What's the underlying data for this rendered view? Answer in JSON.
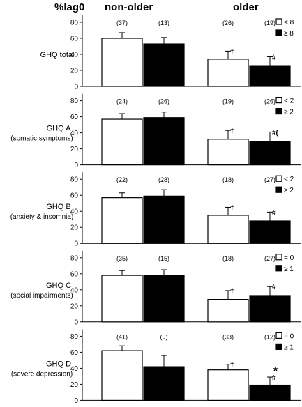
{
  "header": {
    "ylabel": "%lag0",
    "group_nonolder": "non-older",
    "group_older": "older"
  },
  "chart_data": [
    {
      "type": "bar",
      "title": "GHQ total",
      "subtitle": "",
      "categories": [
        "non-older",
        "older"
      ],
      "ylim": [
        0,
        80
      ],
      "yticks": [
        0,
        20,
        40,
        60,
        80
      ],
      "legend_position": "top-right",
      "series": [
        {
          "name": "< 8",
          "fill": "#ffffff",
          "values": [
            60,
            34
          ],
          "errors": [
            7,
            10
          ],
          "n_labels": [
            "(37)",
            "(26)"
          ],
          "marks": [
            "",
            "†"
          ]
        },
        {
          "name": "≥ 8",
          "fill": "#000000",
          "values": [
            53,
            26
          ],
          "errors": [
            8,
            11
          ],
          "n_labels": [
            "(13)",
            "(19)"
          ],
          "marks": [
            "",
            "#"
          ]
        }
      ]
    },
    {
      "type": "bar",
      "title": "GHQ A",
      "subtitle": "(somatic symptoms)",
      "categories": [
        "non-older",
        "older"
      ],
      "ylim": [
        0,
        80
      ],
      "yticks": [
        0,
        20,
        40,
        60,
        80
      ],
      "legend_position": "top-right",
      "series": [
        {
          "name": "< 2",
          "fill": "#ffffff",
          "values": [
            57,
            32
          ],
          "errors": [
            7,
            11
          ],
          "n_labels": [
            "(24)",
            "(19)"
          ],
          "marks": [
            "",
            "†"
          ]
        },
        {
          "name": "≥ 2",
          "fill": "#000000",
          "values": [
            59,
            29
          ],
          "errors": [
            7,
            12
          ],
          "n_labels": [
            "(26)",
            "(26)"
          ],
          "marks": [
            "",
            "#("
          ]
        }
      ]
    },
    {
      "type": "bar",
      "title": "GHQ B",
      "subtitle": "(anxiety & insomnia)",
      "categories": [
        "non-older",
        "older"
      ],
      "ylim": [
        0,
        80
      ],
      "yticks": [
        0,
        20,
        40,
        60,
        80
      ],
      "legend_position": "top-right",
      "series": [
        {
          "name": "< 2",
          "fill": "#ffffff",
          "values": [
            57,
            35
          ],
          "errors": [
            6,
            10
          ],
          "n_labels": [
            "(22)",
            "(18)"
          ],
          "marks": [
            "",
            "†"
          ]
        },
        {
          "name": "≥ 2",
          "fill": "#000000",
          "values": [
            59,
            28
          ],
          "errors": [
            8,
            11
          ],
          "n_labels": [
            "(28)",
            "(27)"
          ],
          "marks": [
            "",
            "#"
          ]
        }
      ]
    },
    {
      "type": "bar",
      "title": "GHQ C",
      "subtitle": "(social impairments)",
      "categories": [
        "non-older",
        "older"
      ],
      "ylim": [
        0,
        80
      ],
      "yticks": [
        0,
        20,
        40,
        60,
        80
      ],
      "legend_position": "top-right",
      "series": [
        {
          "name": "= 0",
          "fill": "#ffffff",
          "values": [
            58,
            28
          ],
          "errors": [
            6,
            11
          ],
          "n_labels": [
            "(35)",
            "(18)"
          ],
          "marks": [
            "",
            "†"
          ]
        },
        {
          "name": "≥ 1",
          "fill": "#000000",
          "values": [
            58,
            32
          ],
          "errors": [
            7,
            12
          ],
          "n_labels": [
            "(15)",
            "(27)"
          ],
          "marks": [
            "",
            "#"
          ]
        }
      ]
    },
    {
      "type": "bar",
      "title": "GHQ D",
      "subtitle": "(severe depression)",
      "categories": [
        "non-older",
        "older"
      ],
      "ylim": [
        0,
        80
      ],
      "yticks": [
        0,
        20,
        40,
        60,
        80
      ],
      "legend_position": "top-right",
      "annotation": "*",
      "series": [
        {
          "name": "= 0",
          "fill": "#ffffff",
          "values": [
            62,
            38
          ],
          "errors": [
            6,
            7
          ],
          "n_labels": [
            "(41)",
            "(33)"
          ],
          "marks": [
            "",
            "†"
          ]
        },
        {
          "name": "≥ 1",
          "fill": "#000000",
          "values": [
            42,
            19
          ],
          "errors": [
            14,
            10
          ],
          "n_labels": [
            "(9)",
            "(12)"
          ],
          "marks": [
            "",
            "#"
          ]
        }
      ]
    }
  ]
}
